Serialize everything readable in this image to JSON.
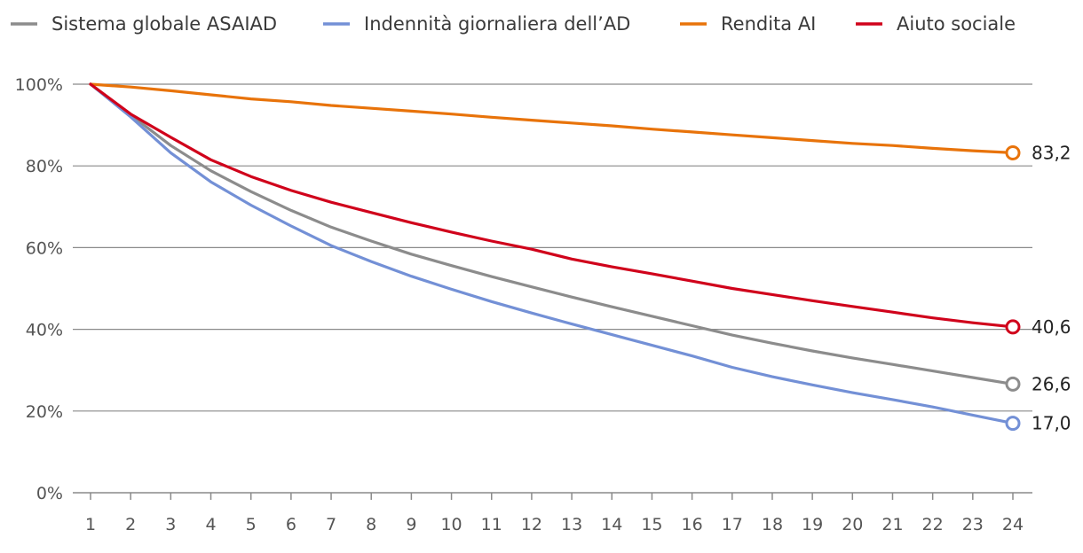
{
  "chart_data": {
    "type": "line",
    "title": "",
    "xlabel": "",
    "ylabel": "",
    "x": [
      1,
      2,
      3,
      4,
      5,
      6,
      7,
      8,
      9,
      10,
      11,
      12,
      13,
      14,
      15,
      16,
      17,
      18,
      19,
      20,
      21,
      22,
      23,
      24
    ],
    "ylim": [
      0,
      100
    ],
    "y_ticks": [
      "0%",
      "20%",
      "40%",
      "60%",
      "80%",
      "100%"
    ],
    "grid": "horizontal",
    "legend_position": "top",
    "series": [
      {
        "name": "Sistema globale ASAIAD",
        "color": "#8c8c8c",
        "values": [
          100,
          92.5,
          85.0,
          78.8,
          73.7,
          69.1,
          65.0,
          61.6,
          58.4,
          55.6,
          52.9,
          50.4,
          47.9,
          45.5,
          43.2,
          40.9,
          38.6,
          36.6,
          34.7,
          33.0,
          31.4,
          29.8,
          28.2,
          26.6
        ],
        "end_label": "26,6"
      },
      {
        "name": "Indennità giornaliera dell’AD",
        "color": "#7390d6",
        "values": [
          100,
          92.0,
          83.2,
          76.1,
          70.4,
          65.3,
          60.5,
          56.6,
          53.0,
          49.8,
          46.8,
          44.0,
          41.3,
          38.7,
          36.1,
          33.5,
          30.7,
          28.4,
          26.4,
          24.5,
          22.8,
          21.0,
          19.0,
          17.0
        ],
        "end_label": "17,0"
      },
      {
        "name": "Rendita AI",
        "color": "#e8730a",
        "values": [
          100,
          99.3,
          98.4,
          97.4,
          96.4,
          95.7,
          94.8,
          94.1,
          93.4,
          92.7,
          91.9,
          91.2,
          90.5,
          89.8,
          89.0,
          88.3,
          87.6,
          86.9,
          86.2,
          85.5,
          85.0,
          84.3,
          83.7,
          83.2
        ],
        "end_label": "83,2"
      },
      {
        "name": "Aiuto sociale",
        "color": "#d0021b",
        "values": [
          100,
          92.7,
          87.0,
          81.5,
          77.4,
          74.0,
          71.1,
          68.6,
          66.1,
          63.8,
          61.6,
          59.6,
          57.2,
          55.3,
          53.6,
          51.8,
          50.0,
          48.5,
          47.0,
          45.6,
          44.2,
          42.8,
          41.6,
          40.6
        ],
        "end_label": "40,6"
      }
    ]
  }
}
